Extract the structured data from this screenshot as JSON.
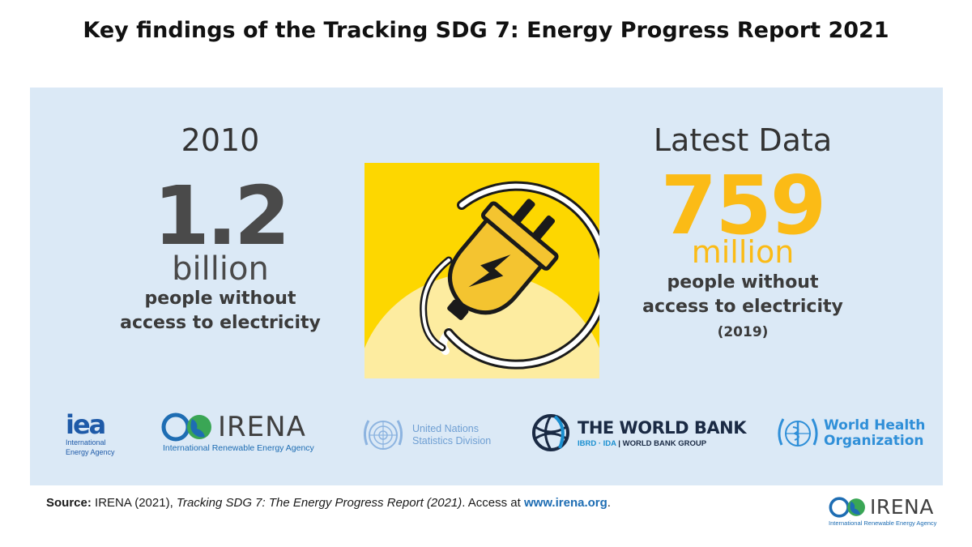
{
  "title": "Key findings of the Tracking SDG 7: Energy Progress Report 2021",
  "left": {
    "year": "2010",
    "value": "1.2",
    "unit": "billion",
    "description_line1": "people without",
    "description_line2": "access to electricity"
  },
  "right": {
    "label": "Latest Data",
    "value": "759",
    "unit": "million",
    "description_line1": "people without",
    "description_line2": "access to electricity",
    "year": "(2019)"
  },
  "illustration": {
    "icon": "electric-plug-icon"
  },
  "logos": {
    "iea": {
      "word": "iea",
      "sub_line1": "International",
      "sub_line2": "Energy Agency"
    },
    "irena": {
      "word": "IRENA",
      "sub": "International Renewable Energy Agency"
    },
    "un": {
      "line1": "United Nations",
      "line2": "Statistics Division"
    },
    "worldbank": {
      "word": "THE WORLD BANK",
      "sub_blue": "IBRD · IDA",
      "sub_dark": " | WORLD BANK GROUP"
    },
    "who": {
      "line1": "World Health",
      "line2": "Organization"
    }
  },
  "source": {
    "label": "Source:",
    "text1": " IRENA (2021), ",
    "title": "Tracking SDG 7: The Energy Progress Report (2021)",
    "text2": ". Access at ",
    "url": "www.irena.org",
    "end": "."
  },
  "footer": {
    "word": "IRENA",
    "sub": "International Renewable Energy Agency"
  },
  "colors": {
    "panel_bg": "#dbe9f6",
    "accent_yellow": "#fbbb16",
    "illustration_bg": "#fdd700",
    "dark_gray": "#4a4a4a",
    "brand_blue": "#1e6db3"
  }
}
